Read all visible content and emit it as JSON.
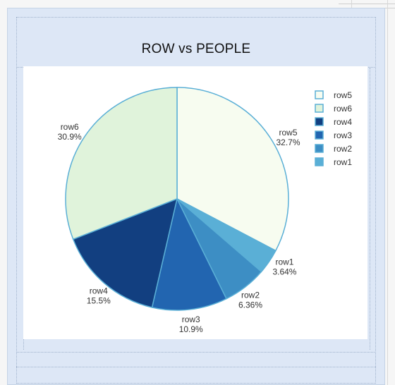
{
  "chart_title": "ROW vs PEOPLE",
  "chart_data": {
    "type": "pie",
    "title": "ROW vs PEOPLE",
    "slices": [
      {
        "label": "row5",
        "percent_label": "32.7%",
        "value": 32.7,
        "color": "#f7fcf0"
      },
      {
        "label": "row1",
        "percent_label": "3.64%",
        "value": 3.64,
        "color": "#5aafd6"
      },
      {
        "label": "row2",
        "percent_label": "6.36%",
        "value": 6.36,
        "color": "#3d8ec4"
      },
      {
        "label": "row3",
        "percent_label": "10.9%",
        "value": 10.9,
        "color": "#2265b0"
      },
      {
        "label": "row4",
        "percent_label": "15.5%",
        "value": 15.5,
        "color": "#123f80"
      },
      {
        "label": "row6",
        "percent_label": "30.9%",
        "value": 30.9,
        "color": "#e0f3db"
      }
    ],
    "legend": {
      "placement": "top-right",
      "entries": [
        {
          "label": "row5",
          "color": "#f7fcf0"
        },
        {
          "label": "row6",
          "color": "#e0f3db"
        },
        {
          "label": "row4",
          "color": "#123f80"
        },
        {
          "label": "row3",
          "color": "#2265b0"
        },
        {
          "label": "row2",
          "color": "#3d8ec4"
        },
        {
          "label": "row1",
          "color": "#5aafd6"
        }
      ]
    },
    "stroke_color": "#5aafd6"
  }
}
